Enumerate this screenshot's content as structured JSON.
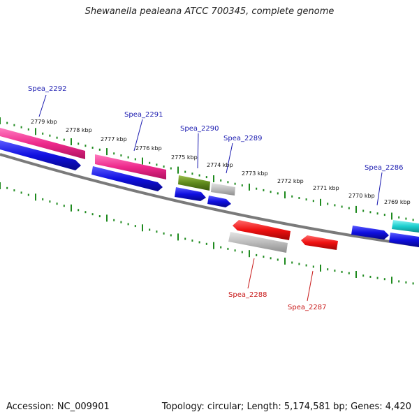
{
  "title": "Shewanella pealeana ATCC 700345, complete genome",
  "footer": {
    "accession": "Accession: NC_009901",
    "topology": "Topology: circular; Length: 5,174,581 bp; Genes: 4,420"
  },
  "tick_labels": [
    "2779 kbp",
    "2778 kbp",
    "2777 kbp",
    "2776 kbp",
    "2775 kbp",
    "2774 kbp",
    "2773 kbp",
    "2772 kbp",
    "2771 kbp",
    "2770 kbp",
    "2769 kbp"
  ],
  "gene_labels": {
    "forward": [
      "Spea_2292",
      "Spea_2291",
      "Spea_2290",
      "Spea_2289",
      "Spea_2286"
    ],
    "reverse": [
      "Spea_2288",
      "Spea_2287"
    ]
  },
  "colors": {
    "backbone": "#7a7a7a",
    "tick": "#1e8a1e",
    "pink": "#ee2a8c",
    "blue": "#1010e0",
    "olive": "#5f8a1c",
    "gray": "#b8b8b8",
    "red": "#ee1010",
    "cyan": "#1ccfcf",
    "label_forward": "#1a1ab0",
    "label_reverse": "#c81818"
  }
}
